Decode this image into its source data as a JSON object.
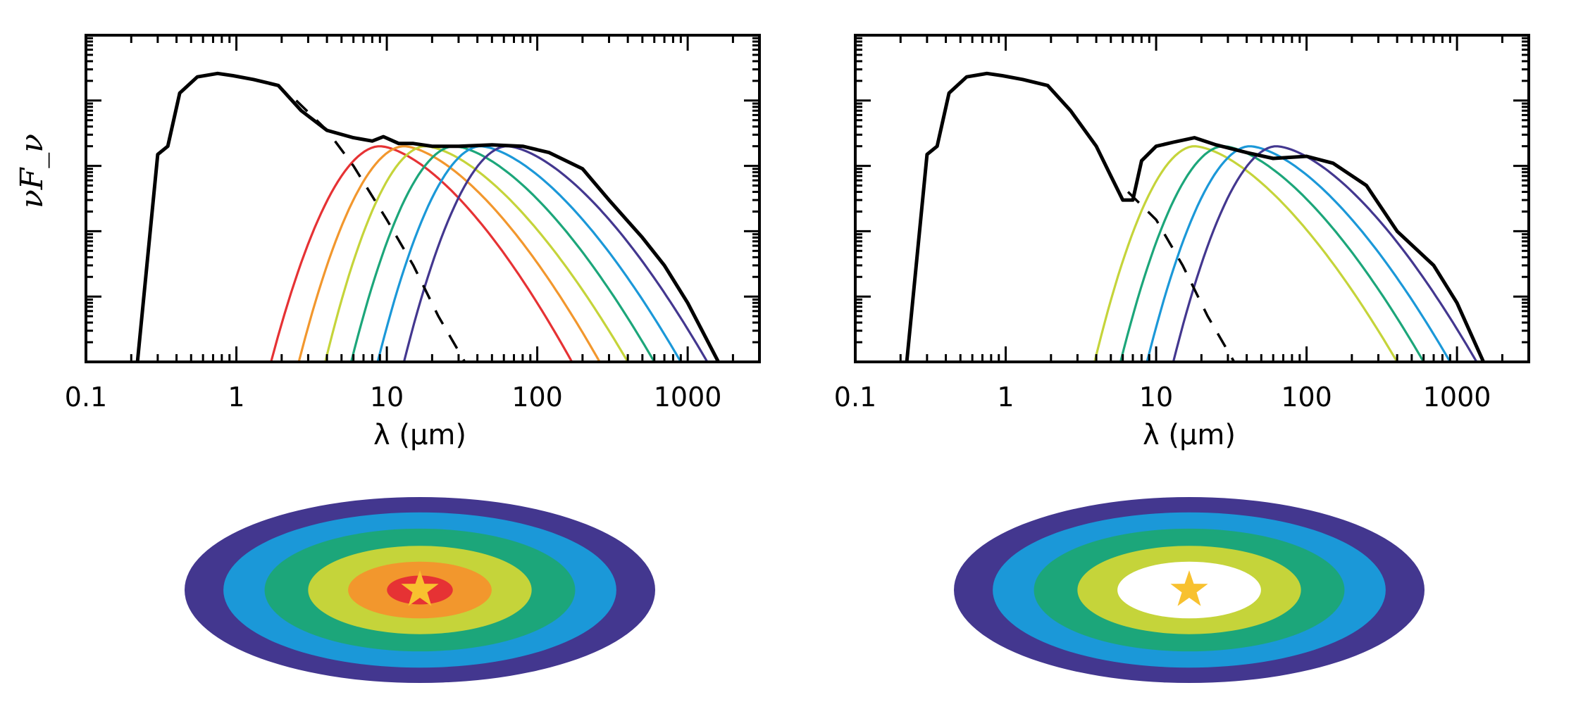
{
  "chart_data": [
    {
      "type": "line",
      "panel": "left",
      "xlabel": "λ (μm)",
      "ylabel": "νF_ν",
      "xscale": "log",
      "yscale": "log",
      "xlim": [
        0.1,
        3000
      ],
      "ylim": [
        1,
        100000
      ],
      "x_ticks": [
        "0.1",
        "1",
        "10",
        "100",
        "1000"
      ],
      "y_tick_labels_shown": false,
      "grid": false,
      "legend": "none",
      "total_sed": {
        "color": "#000000",
        "x": [
          0.22,
          0.3,
          0.35,
          0.42,
          0.55,
          0.75,
          0.95,
          1.3,
          1.9,
          2.7,
          4.0,
          6.0,
          8.0,
          9.5,
          12,
          15,
          20,
          30,
          50,
          80,
          120,
          200,
          300,
          500,
          700,
          1000,
          1600
        ],
        "y": [
          1,
          1500,
          2000,
          13000,
          23000,
          26000,
          24000,
          21000,
          17000,
          7000,
          3500,
          2700,
          2400,
          2800,
          2200,
          2200,
          2000,
          2000,
          2100,
          2000,
          1600,
          900,
          300,
          80,
          30,
          8,
          1
        ]
      },
      "stellar_photosphere": {
        "style": "dashed",
        "color": "#000000",
        "x": [
          2.5,
          4,
          6,
          10,
          15,
          22,
          33
        ],
        "y": [
          10000,
          3500,
          1000,
          150,
          30,
          5,
          1
        ]
      },
      "series": [
        {
          "color": "#e63234",
          "Tpeak_lambda": 9,
          "x_start": 1.7,
          "x_end": 170
        },
        {
          "color": "#f2972d",
          "Tpeak_lambda": 13,
          "x_start": 2.6,
          "x_end": 260
        },
        {
          "color": "#c5d43a",
          "Tpeak_lambda": 18,
          "x_start": 3.9,
          "x_end": 400
        },
        {
          "color": "#1ca67a",
          "Tpeak_lambda": 28,
          "x_start": 5.8,
          "x_end": 600
        },
        {
          "color": "#1b98d8",
          "Tpeak_lambda": 42,
          "x_start": 8.7,
          "x_end": 900
        },
        {
          "color": "#43378f",
          "Tpeak_lambda": 63,
          "x_start": 13,
          "x_end": 1350
        }
      ]
    },
    {
      "type": "line",
      "panel": "right",
      "xlabel": "λ (μm)",
      "xscale": "log",
      "yscale": "log",
      "xlim": [
        0.1,
        3000
      ],
      "ylim": [
        1,
        100000
      ],
      "x_ticks": [
        "0.1",
        "1",
        "10",
        "100",
        "1000"
      ],
      "y_tick_labels_shown": false,
      "grid": false,
      "legend": "none",
      "total_sed": {
        "color": "#000000",
        "x": [
          0.22,
          0.3,
          0.35,
          0.42,
          0.55,
          0.75,
          0.95,
          1.3,
          1.9,
          2.7,
          4.0,
          5.0,
          6.0,
          7.0,
          8.0,
          10,
          13,
          18,
          25,
          40,
          60,
          100,
          150,
          250,
          400,
          700,
          1000,
          1500
        ],
        "y": [
          1,
          1500,
          2000,
          13000,
          23000,
          26000,
          24000,
          21000,
          17000,
          7000,
          2000,
          700,
          300,
          300,
          1200,
          2000,
          2300,
          2700,
          2100,
          1600,
          1300,
          1400,
          1100,
          500,
          100,
          30,
          8,
          1
        ]
      },
      "stellar_photosphere": {
        "style": "dashed",
        "color": "#000000",
        "x": [
          6.5,
          10,
          15,
          22,
          33
        ],
        "y": [
          400,
          150,
          30,
          5,
          1
        ]
      },
      "series": [
        {
          "color": "#c5d43a",
          "Tpeak_lambda": 18,
          "x_start": 3.9,
          "x_end": 400
        },
        {
          "color": "#1ca67a",
          "Tpeak_lambda": 28,
          "x_start": 5.8,
          "x_end": 600
        },
        {
          "color": "#1b98d8",
          "Tpeak_lambda": 42,
          "x_start": 8.7,
          "x_end": 900
        },
        {
          "color": "#43378f",
          "Tpeak_lambda": 63,
          "x_start": 13,
          "x_end": 1350
        }
      ]
    }
  ],
  "disks": [
    {
      "name": "full-disk",
      "rings": [
        "#43378f",
        "#1b98d8",
        "#1ca67a",
        "#c5d43a",
        "#f2972d",
        "#e63234"
      ],
      "star_color": "#f8c12f"
    },
    {
      "name": "transitional-disk",
      "rings": [
        "#43378f",
        "#1b98d8",
        "#1ca67a",
        "#c5d43a",
        "#ffffff"
      ],
      "star_color": "#f8c12f"
    }
  ]
}
